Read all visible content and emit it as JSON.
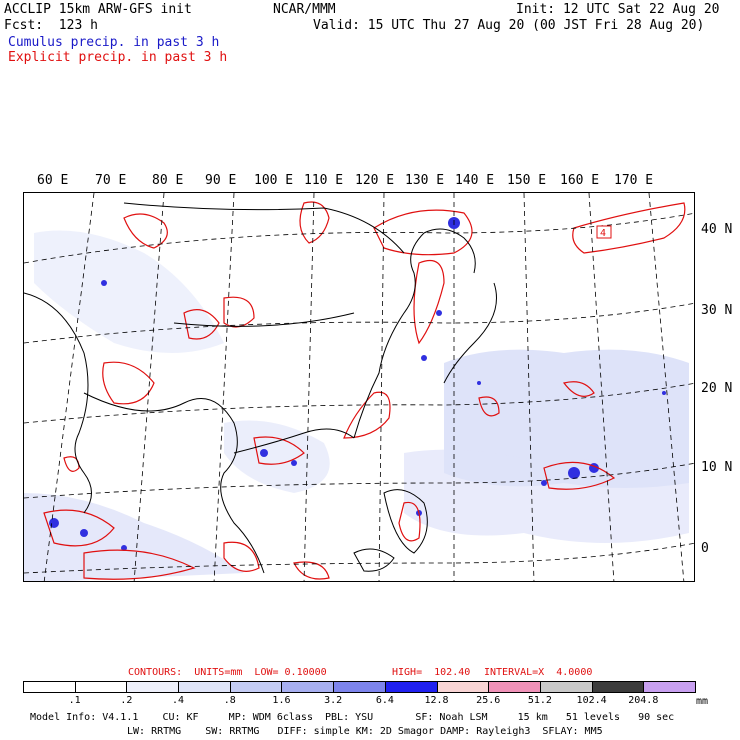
{
  "header": {
    "model": "ACCLIP 15km ARW-GFS init",
    "center": "NCAR/MMM",
    "init": "Init: 12 UTC Sat 22 Aug 20",
    "fcst": "Fcst:  123 h",
    "valid": "Valid: 15 UTC Thu 27 Aug 20 (00 JST Fri 28 Aug 20)",
    "legend_cumulus": "Cumulus precip. in past 3 h",
    "legend_explicit": "Explicit precip. in past 3 h"
  },
  "colors": {
    "cumulus": "#1a1ac8",
    "explicit": "#e01010",
    "coast": "#000000"
  },
  "map": {
    "lon_labels": [
      "60 E",
      "70 E",
      "80 E",
      "90 E",
      "100 E",
      "110 E",
      "120 E",
      "130 E",
      "140 E",
      "150 E",
      "160 E",
      "170 E"
    ],
    "lat_labels": [
      "40 N",
      "30 N",
      "20 N",
      "10 N",
      "0"
    ],
    "contour_label": "4"
  },
  "contours_line": {
    "contours": "CONTOURS:  UNITS=mm  LOW= 0.10000",
    "high": "HIGH=  102.40",
    "interval": "INTERVAL=X  4.0000"
  },
  "colorbar": {
    "labels": [
      ".1",
      ".2",
      ".4",
      ".8",
      "1.6",
      "3.2",
      "6.4",
      "12.8",
      "25.6",
      "51.2",
      "102.4",
      "204.8"
    ],
    "unit": "mm",
    "colors": [
      "#ffffff",
      "#ffffff",
      "#eef0fb",
      "#dfe4f8",
      "#c4ccf4",
      "#a7aff0",
      "#7d84ec",
      "#2020f0",
      "#f8d4d4",
      "#f092b8",
      "#c8c8c8",
      "#3c3c3c",
      "#c8a0f0"
    ]
  },
  "footer": {
    "line1": "Model Info: V4.1.1    CU: KF     MP: WDM 6class  PBL: YSU       SF: Noah LSM     15 km   51 levels   90 sec",
    "line2": "LW: RRTMG    SW: RRTMG   DIFF: simple KM: 2D Smagor DAMP: Rayleigh3  SFLAY: MM5"
  }
}
